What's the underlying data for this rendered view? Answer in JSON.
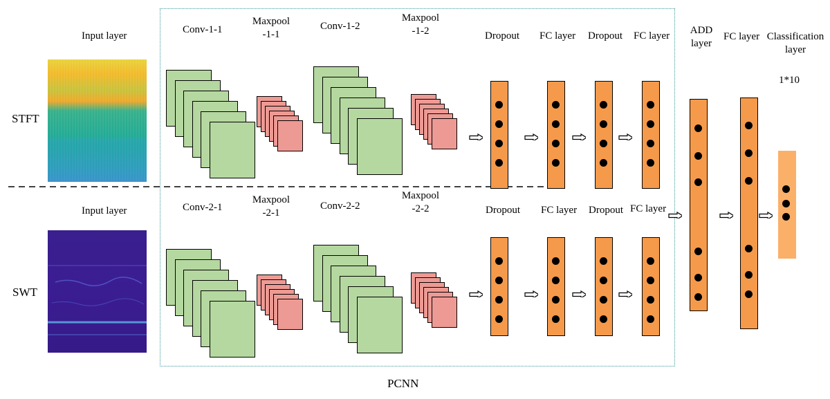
{
  "stft": {
    "side_label": "STFT",
    "input_label": "Input layer",
    "conv1": "Conv-1-1",
    "pool1": [
      "Maxpool",
      "-1-1"
    ],
    "conv2": "Conv-1-2",
    "pool2": [
      "Maxpool",
      "-1-2"
    ],
    "dropout1": "Dropout",
    "fc1": "FC layer",
    "dropout2": "Dropout",
    "fc2": "FC layer"
  },
  "swt": {
    "side_label": "SWT",
    "input_label": "Input layer",
    "conv1": "Conv-2-1",
    "pool1": [
      "Maxpool",
      "-2-1"
    ],
    "conv2": "Conv-2-2",
    "pool2": [
      "Maxpool",
      "-2-2"
    ],
    "dropout1": "Dropout",
    "fc1": "FC layer",
    "dropout2": "Dropout",
    "fc2": "FC layer"
  },
  "merge": {
    "add": [
      "ADD",
      "layer"
    ],
    "fc": "FC layer",
    "classification": [
      "Classification",
      "layer"
    ],
    "output_size": "1*10"
  },
  "pcnn_label": "PCNN",
  "colors": {
    "conv": "#b5d8a0",
    "pool": "#ee9a94",
    "fc": "#f59a4b",
    "classification": "#fbb06a",
    "pcnn_border": "#3a9a9a"
  }
}
